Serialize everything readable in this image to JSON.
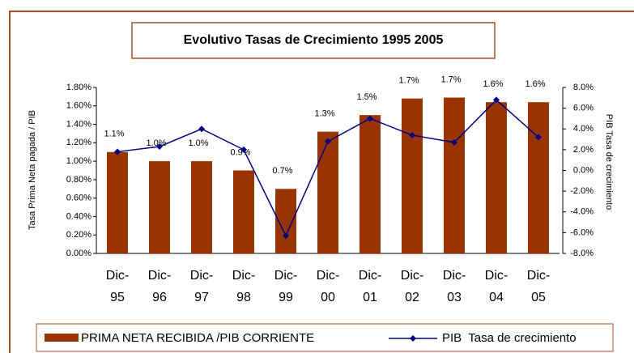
{
  "chart_data": {
    "type": "bar_line",
    "title": "Evolutivo Tasas de Crecimiento 1995 2005",
    "ylabel": "Tasa Prima Neta pagada / PIB",
    "y2label": "PIB Tasa de crecimiento",
    "categories": [
      "Dic-95",
      "Dic-96",
      "Dic-97",
      "Dic-98",
      "Dic-99",
      "Dic-00",
      "Dic-01",
      "Dic-02",
      "Dic-03",
      "Dic-04",
      "Dic-05"
    ],
    "series": [
      {
        "name": "PRIMA NETA RECIBIDA /PIB CORRIENTE",
        "type": "bar",
        "color": "#993300",
        "values": [
          1.1,
          1.0,
          1.0,
          0.9,
          0.7,
          1.32,
          1.5,
          1.68,
          1.69,
          1.64,
          1.64
        ],
        "value_labels": [
          "1.1%",
          "1.0%",
          "1.0%",
          "0.9%",
          "0.7%",
          "1.3%",
          "1.5%",
          "1.7%",
          "1.7%",
          "1.6%",
          "1.6%"
        ]
      },
      {
        "name": "PIB  Tasa de crecimiento",
        "type": "line",
        "axis": "y2",
        "color": "#000080",
        "values": [
          1.8,
          2.3,
          4.0,
          2.0,
          -6.3,
          2.8,
          5.0,
          3.4,
          2.7,
          6.8,
          3.2
        ]
      }
    ],
    "ylim": [
      0,
      1.8
    ],
    "yticks": [
      {
        "value": 0,
        "label": "0.00%"
      },
      {
        "value": 0.2,
        "label": "0.20%"
      },
      {
        "value": 0.4,
        "label": "0.40%"
      },
      {
        "value": 0.6,
        "label": "0.60%"
      },
      {
        "value": 0.8,
        "label": "0.80%"
      },
      {
        "value": 1.0,
        "label": "1.00%"
      },
      {
        "value": 1.2,
        "label": "1.20%"
      },
      {
        "value": 1.4,
        "label": "1.40%"
      },
      {
        "value": 1.6,
        "label": "1.60%"
      },
      {
        "value": 1.8,
        "label": "1.80%"
      }
    ],
    "y2lim": [
      -8,
      8
    ],
    "y2ticks": [
      {
        "value": -8,
        "label": "-8.0%"
      },
      {
        "value": -6,
        "label": "-6.0%"
      },
      {
        "value": -4,
        "label": "-4.0%"
      },
      {
        "value": -2,
        "label": "-2.0%"
      },
      {
        "value": 0,
        "label": "0.0%"
      },
      {
        "value": 2,
        "label": "2.0%"
      },
      {
        "value": 4,
        "label": "4.0%"
      },
      {
        "value": 6,
        "label": "6.0%"
      },
      {
        "value": 8,
        "label": "8.0%"
      }
    ]
  }
}
